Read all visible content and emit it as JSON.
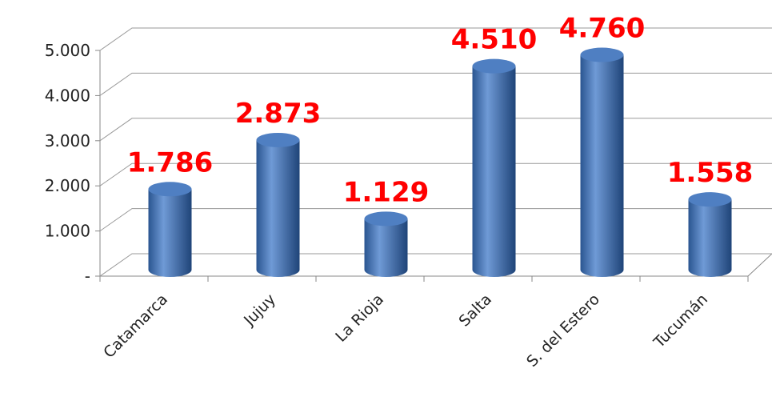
{
  "chart_data": {
    "type": "bar",
    "categories": [
      "Catamarca",
      "Jujuy",
      "La Rioja",
      "Salta",
      "S. del Estero",
      "Tucumán"
    ],
    "values": [
      1786,
      2873,
      1129,
      4510,
      4760,
      1558
    ],
    "value_labels": [
      "1.786",
      "2.873",
      "1.129",
      "4.510",
      "4.760",
      "1.558"
    ],
    "color": "#3d6eb0",
    "ylim": [
      0,
      5000
    ],
    "yticks": [
      {
        "value": 0,
        "label": "-"
      },
      {
        "value": 1000,
        "label": "1.000"
      },
      {
        "value": 2000,
        "label": "2.000"
      },
      {
        "value": 3000,
        "label": "3.000"
      },
      {
        "value": 4000,
        "label": "4.000"
      },
      {
        "value": 5000,
        "label": "5.000"
      }
    ],
    "grid": true
  }
}
